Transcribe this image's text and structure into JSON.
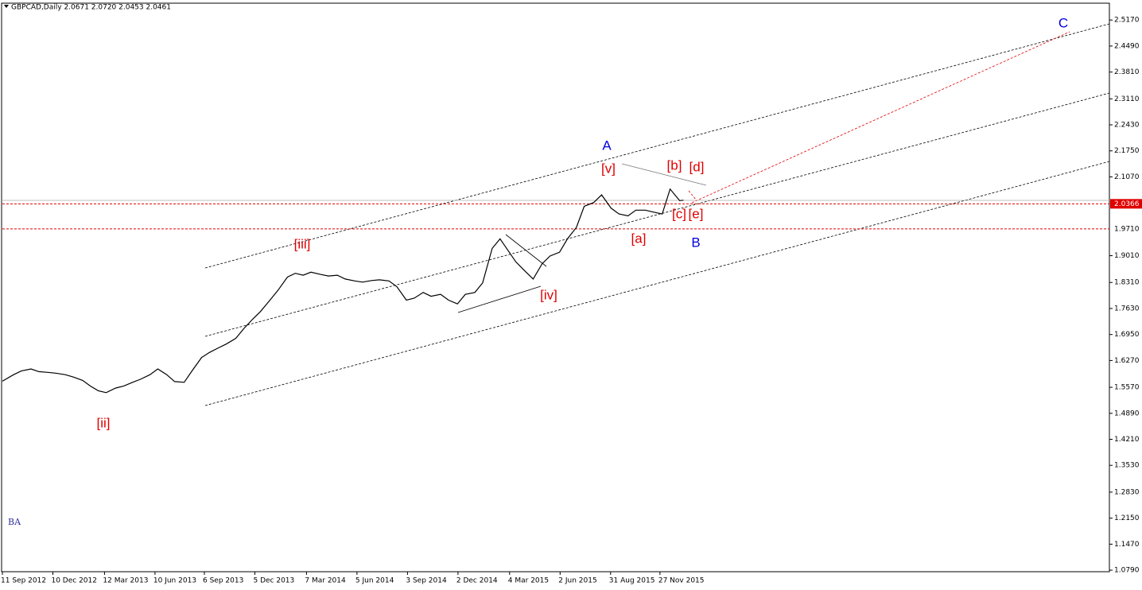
{
  "chart_data": {
    "type": "line",
    "title": "GBPCAD,Daily  2.0671 2.0720 2.0453 2.0461",
    "watermark": "BA",
    "x": [
      "11 Sep 2012",
      "1 Oct 2012",
      "15 Oct 2012",
      "1 Nov 2012",
      "15 Nov 2012",
      "1 Dec 2012",
      "15 Dec 2012",
      "1 Jan 2013",
      "15 Jan 2013",
      "1 Feb 2013",
      "15 Feb 2013",
      "1 Mar 2013",
      "15 Mar 2013",
      "1 Apr 2013",
      "15 Apr 2013",
      "1 May 2013",
      "15 May 2013",
      "1 Jun 2013",
      "15 Jun 2013",
      "1 Jul 2013",
      "15 Jul 2013",
      "1 Aug 2013",
      "15 Aug 2013",
      "1 Sep 2013",
      "15 Sep 2013",
      "1 Oct 2013",
      "15 Oct 2013",
      "1 Nov 2013",
      "15 Nov 2013",
      "1 Dec 2013",
      "15 Dec 2013",
      "1 Jan 2014",
      "15 Jan 2014",
      "1 Feb 2014",
      "15 Feb 2014",
      "1 Mar 2014",
      "15 Mar 2014",
      "1 Apr 2014",
      "15 Apr 2014",
      "1 May 2014",
      "15 May 2014",
      "1 Jun 2014",
      "15 Jun 2014",
      "1 Jul 2014",
      "15 Jul 2014",
      "1 Aug 2014",
      "15 Aug 2014",
      "1 Sep 2014",
      "15 Sep 2014",
      "1 Oct 2014",
      "15 Oct 2014",
      "1 Nov 2014",
      "15 Nov 2014",
      "1 Dec 2014",
      "15 Dec 2014",
      "1 Jan 2015",
      "15 Jan 2015",
      "1 Feb 2015",
      "15 Feb 2015",
      "1 Mar 2015",
      "15 Mar 2015",
      "1 Apr 2015",
      "15 Apr 2015",
      "1 May 2015",
      "15 May 2015",
      "1 Jun 2015",
      "15 Jun 2015",
      "1 Jul 2015",
      "15 Jul 2015",
      "1 Aug 2015",
      "15 Aug 2015",
      "1 Sep 2015",
      "15 Sep 2015",
      "1 Oct 2015",
      "15 Oct 2015",
      "1 Nov 2015",
      "15 Nov 2015",
      "1 Dec 2015",
      "15 Dec 2015",
      "1 Jan 2016",
      "8 Jan 2016"
    ],
    "series": [
      {
        "name": "GBPCAD",
        "color": "#000000",
        "values": [
          1.573,
          1.59,
          1.6,
          1.605,
          1.598,
          1.596,
          1.594,
          1.59,
          1.584,
          1.575,
          1.56,
          1.548,
          1.543,
          1.555,
          1.56,
          1.57,
          1.578,
          1.59,
          1.605,
          1.59,
          1.572,
          1.57,
          1.6,
          1.635,
          1.648,
          1.66,
          1.67,
          1.685,
          1.71,
          1.735,
          1.755,
          1.785,
          1.81,
          1.845,
          1.855,
          1.85,
          1.858,
          1.852,
          1.848,
          1.85,
          1.84,
          1.835,
          1.832,
          1.836,
          1.838,
          1.835,
          1.82,
          1.785,
          1.79,
          1.805,
          1.795,
          1.8,
          1.785,
          1.775,
          1.8,
          1.805,
          1.83,
          1.92,
          1.945,
          1.915,
          1.885,
          1.86,
          1.84,
          1.88,
          1.9,
          1.91,
          1.945,
          1.975,
          2.03,
          2.04,
          2.06,
          2.025,
          2.01,
          2.005,
          2.02,
          2.02,
          2.015,
          2.01,
          2.075,
          2.045,
          2.046
        ]
      }
    ],
    "xlim": [
      "11 Sep 2012",
      "5 Feb 2018"
    ],
    "xticks": [
      "11 Sep 2012",
      "10 Dec 2012",
      "12 Mar 2013",
      "10 Jun 2013",
      "6 Sep 2013",
      "5 Dec 2013",
      "7 Mar 2014",
      "5 Jun 2014",
      "3 Sep 2014",
      "2 Dec 2014",
      "4 Mar 2015",
      "2 Jun 2015",
      "31 Aug 2015",
      "27 Nov 2015"
    ],
    "ylim": [
      1.075,
      2.561
    ],
    "yticks": [
      {
        "value": 2.517,
        "label": "2.5170"
      },
      {
        "value": 2.449,
        "label": "2.4490"
      },
      {
        "value": 2.381,
        "label": "2.3810"
      },
      {
        "value": 2.311,
        "label": "2.3110"
      },
      {
        "value": 2.243,
        "label": "2.2430"
      },
      {
        "value": 2.175,
        "label": "2.1750"
      },
      {
        "value": 2.107,
        "label": "2.1070"
      },
      {
        "value": 1.901,
        "label": "1.9010"
      },
      {
        "value": 1.831,
        "label": "1.8310"
      },
      {
        "value": 1.763,
        "label": "1.7630"
      },
      {
        "value": 1.695,
        "label": "1.6950"
      },
      {
        "value": 1.627,
        "label": "1.6270"
      },
      {
        "value": 1.557,
        "label": "1.5570"
      },
      {
        "value": 1.489,
        "label": "1.4890"
      },
      {
        "value": 1.421,
        "label": "1.4210"
      },
      {
        "value": 1.353,
        "label": "1.3530"
      },
      {
        "value": 1.283,
        "label": "1.2830"
      },
      {
        "value": 1.215,
        "label": "1.2150"
      },
      {
        "value": 1.147,
        "label": "1.1470"
      },
      {
        "value": 1.079,
        "label": "1.0790"
      }
    ],
    "levels": [
      {
        "value": 2.0366,
        "color": "#e00000",
        "highlight": true
      },
      {
        "value": 1.971,
        "label": "1.9710",
        "color": "#e00000"
      }
    ],
    "annotations": [
      {
        "text": "A",
        "color": "#0000e0"
      },
      {
        "text": "[v]",
        "color": "#e00000"
      },
      {
        "text": "[iii]",
        "color": "#e00000"
      },
      {
        "text": "[ii]",
        "color": "#e00000"
      },
      {
        "text": "[iv]",
        "color": "#e00000"
      },
      {
        "text": "[a]",
        "color": "#e00000"
      },
      {
        "text": "[b]",
        "color": "#e00000"
      },
      {
        "text": "[d]",
        "color": "#e00000"
      },
      {
        "text": "[c]",
        "color": "#e00000"
      },
      {
        "text": "[e]",
        "color": "#e00000"
      },
      {
        "text": "B",
        "color": "#0000e0"
      },
      {
        "text": "C",
        "color": "#0000e0"
      }
    ]
  }
}
